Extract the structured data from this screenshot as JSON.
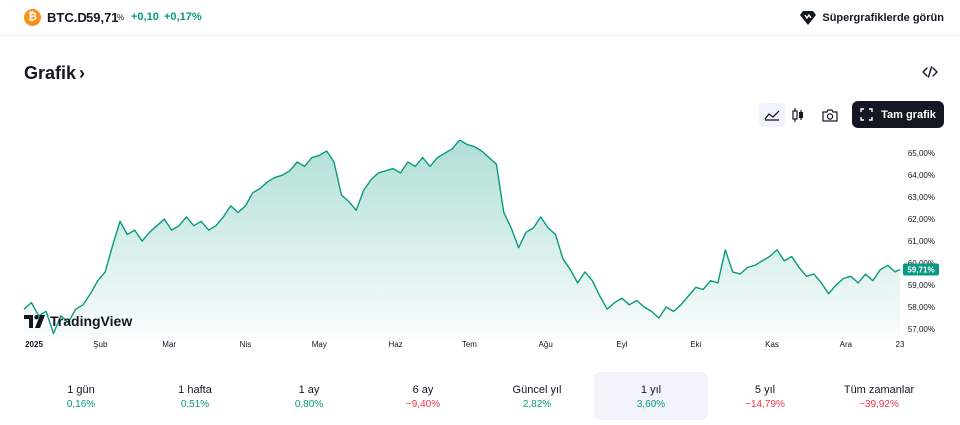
{
  "header": {
    "symbol_icon_glyph": "₿",
    "symbol": "BTC.D",
    "price": "59,71",
    "unit": "%",
    "change": "+0,10",
    "change_percent": "+0,17%",
    "supercharts_label": "Süpergrafiklerde görün"
  },
  "section": {
    "title": "Grafik",
    "chevron": "›"
  },
  "toolbar": {
    "full_chart_label": "Tam grafik",
    "buttons": [
      "area-chart-icon",
      "candles-icon",
      "camera-icon",
      "fullscreen-icon",
      "embed-code-icon"
    ]
  },
  "brand": {
    "name": "TradingView"
  },
  "colors": {
    "accent": "#089981",
    "negative": "#f23645",
    "btc": "#f7931a",
    "dark": "#131722"
  },
  "chart_data": {
    "type": "area",
    "xlabel": "",
    "ylabel": "",
    "x_tick_labels": [
      "2025",
      "Şub",
      "Mar",
      "Nis",
      "May",
      "Haz",
      "Tem",
      "Ağu",
      "Eyl",
      "Eki",
      "Kas",
      "Ara",
      "23"
    ],
    "y_tick_labels": [
      "65,00%",
      "64,00%",
      "63,00%",
      "62,00%",
      "61,00%",
      "60,00%",
      "59,00%",
      "58,00%",
      "57,00%"
    ],
    "ylim": [
      56.5,
      65.6
    ],
    "last_value_label": "59,71%",
    "grid": false,
    "series": [
      {
        "values_note": "",
        "points": [
          [
            "2025-01-01",
            57.9
          ],
          [
            "2025-01-04",
            58.2
          ],
          [
            "2025-01-07",
            57.6
          ],
          [
            "2025-01-10",
            57.8
          ],
          [
            "2025-01-13",
            56.8
          ],
          [
            "2025-01-16",
            57.6
          ],
          [
            "2025-01-19",
            57.3
          ],
          [
            "2025-01-22",
            57.9
          ],
          [
            "2025-01-25",
            58.1
          ],
          [
            "2025-01-28",
            58.6
          ],
          [
            "2025-01-31",
            59.2
          ],
          [
            "2025-02-03",
            59.6
          ],
          [
            "2025-02-06",
            60.8
          ],
          [
            "2025-02-09",
            61.9
          ],
          [
            "2025-02-12",
            61.3
          ],
          [
            "2025-02-15",
            61.5
          ],
          [
            "2025-02-18",
            61.0
          ],
          [
            "2025-02-21",
            61.4
          ],
          [
            "2025-02-24",
            61.7
          ],
          [
            "2025-02-27",
            62.0
          ],
          [
            "2025-03-02",
            61.5
          ],
          [
            "2025-03-05",
            61.7
          ],
          [
            "2025-03-08",
            62.1
          ],
          [
            "2025-03-11",
            61.7
          ],
          [
            "2025-03-14",
            61.9
          ],
          [
            "2025-03-17",
            61.5
          ],
          [
            "2025-03-20",
            61.7
          ],
          [
            "2025-03-23",
            62.1
          ],
          [
            "2025-03-26",
            62.6
          ],
          [
            "2025-03-29",
            62.3
          ],
          [
            "2025-04-01",
            62.6
          ],
          [
            "2025-04-04",
            63.2
          ],
          [
            "2025-04-07",
            63.4
          ],
          [
            "2025-04-10",
            63.7
          ],
          [
            "2025-04-13",
            63.9
          ],
          [
            "2025-04-16",
            64.0
          ],
          [
            "2025-04-19",
            64.2
          ],
          [
            "2025-04-22",
            64.6
          ],
          [
            "2025-04-25",
            64.4
          ],
          [
            "2025-04-28",
            64.8
          ],
          [
            "2025-05-01",
            64.9
          ],
          [
            "2025-05-04",
            65.1
          ],
          [
            "2025-05-07",
            64.6
          ],
          [
            "2025-05-10",
            63.1
          ],
          [
            "2025-05-13",
            62.8
          ],
          [
            "2025-05-16",
            62.4
          ],
          [
            "2025-05-19",
            63.3
          ],
          [
            "2025-05-22",
            63.8
          ],
          [
            "2025-05-25",
            64.1
          ],
          [
            "2025-05-28",
            64.2
          ],
          [
            "2025-05-31",
            64.3
          ],
          [
            "2025-06-03",
            64.1
          ],
          [
            "2025-06-06",
            64.6
          ],
          [
            "2025-06-09",
            64.4
          ],
          [
            "2025-06-12",
            64.8
          ],
          [
            "2025-06-15",
            64.4
          ],
          [
            "2025-06-18",
            64.8
          ],
          [
            "2025-06-21",
            65.0
          ],
          [
            "2025-06-24",
            65.2
          ],
          [
            "2025-06-27",
            65.6
          ],
          [
            "2025-06-30",
            65.4
          ],
          [
            "2025-07-03",
            65.3
          ],
          [
            "2025-07-06",
            65.1
          ],
          [
            "2025-07-09",
            64.8
          ],
          [
            "2025-07-12",
            64.5
          ],
          [
            "2025-07-15",
            62.3
          ],
          [
            "2025-07-18",
            61.6
          ],
          [
            "2025-07-21",
            60.7
          ],
          [
            "2025-07-24",
            61.4
          ],
          [
            "2025-07-27",
            61.6
          ],
          [
            "2025-07-30",
            62.1
          ],
          [
            "2025-08-02",
            61.6
          ],
          [
            "2025-08-05",
            61.3
          ],
          [
            "2025-08-08",
            60.2
          ],
          [
            "2025-08-11",
            59.7
          ],
          [
            "2025-08-14",
            59.1
          ],
          [
            "2025-08-17",
            59.6
          ],
          [
            "2025-08-20",
            59.2
          ],
          [
            "2025-08-23",
            58.5
          ],
          [
            "2025-08-26",
            57.9
          ],
          [
            "2025-08-29",
            58.2
          ],
          [
            "2025-09-01",
            58.4
          ],
          [
            "2025-09-04",
            58.1
          ],
          [
            "2025-09-07",
            58.3
          ],
          [
            "2025-09-10",
            58.0
          ],
          [
            "2025-09-13",
            57.8
          ],
          [
            "2025-09-16",
            57.5
          ],
          [
            "2025-09-19",
            58.0
          ],
          [
            "2025-09-22",
            57.8
          ],
          [
            "2025-09-25",
            58.1
          ],
          [
            "2025-09-28",
            58.5
          ],
          [
            "2025-10-01",
            58.9
          ],
          [
            "2025-10-04",
            58.8
          ],
          [
            "2025-10-07",
            59.2
          ],
          [
            "2025-10-10",
            59.1
          ],
          [
            "2025-10-13",
            60.6
          ],
          [
            "2025-10-16",
            59.6
          ],
          [
            "2025-10-19",
            59.5
          ],
          [
            "2025-10-22",
            59.8
          ],
          [
            "2025-10-25",
            59.9
          ],
          [
            "2025-10-28",
            60.1
          ],
          [
            "2025-10-31",
            60.3
          ],
          [
            "2025-11-03",
            60.6
          ],
          [
            "2025-11-06",
            60.1
          ],
          [
            "2025-11-09",
            60.3
          ],
          [
            "2025-11-12",
            59.8
          ],
          [
            "2025-11-15",
            59.4
          ],
          [
            "2025-11-18",
            59.5
          ],
          [
            "2025-11-21",
            59.1
          ],
          [
            "2025-11-24",
            58.6
          ],
          [
            "2025-11-27",
            59.0
          ],
          [
            "2025-11-30",
            59.3
          ],
          [
            "2025-12-03",
            59.4
          ],
          [
            "2025-12-06",
            59.1
          ],
          [
            "2025-12-09",
            59.5
          ],
          [
            "2025-12-12",
            59.2
          ],
          [
            "2025-12-15",
            59.7
          ],
          [
            "2025-12-18",
            59.9
          ],
          [
            "2025-12-21",
            59.6
          ],
          [
            "2025-12-23",
            59.71
          ]
        ]
      }
    ]
  },
  "periods": [
    {
      "label": "1 gün",
      "value": "0,16%",
      "trend": "pos",
      "selected": false
    },
    {
      "label": "1 hafta",
      "value": "0,51%",
      "trend": "pos",
      "selected": false
    },
    {
      "label": "1 ay",
      "value": "0,80%",
      "trend": "pos",
      "selected": false
    },
    {
      "label": "6 ay",
      "value": "−9,40%",
      "trend": "neg",
      "selected": false
    },
    {
      "label": "Güncel yıl",
      "value": "2,82%",
      "trend": "pos",
      "selected": false
    },
    {
      "label": "1 yıl",
      "value": "3,60%",
      "trend": "pos",
      "selected": true
    },
    {
      "label": "5 yıl",
      "value": "−14,79%",
      "trend": "neg",
      "selected": false
    },
    {
      "label": "Tüm zamanlar",
      "value": "−39,92%",
      "trend": "neg",
      "selected": false
    }
  ]
}
